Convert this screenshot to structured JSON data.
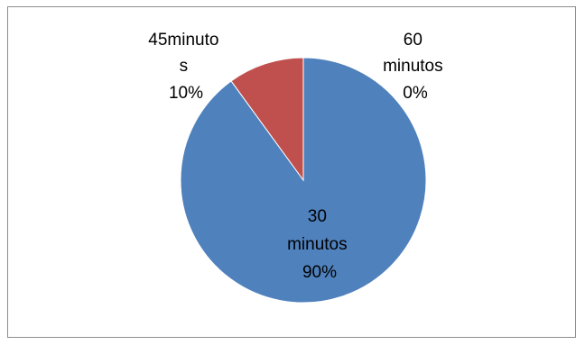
{
  "chart_data": {
    "type": "pie",
    "title": "",
    "slices": [
      {
        "label": "30 minutos",
        "value": 90,
        "percent_label": "90%",
        "color": "#4F81BD"
      },
      {
        "label": "45minutos",
        "value": 10,
        "percent_label": "10%",
        "color": "#C0504D"
      },
      {
        "label": "60 minutos",
        "value": 0,
        "percent_label": "0%",
        "color": "#9BBB59"
      }
    ],
    "data_labels": [
      {
        "lines": [
          "30",
          "minutos",
          "90%"
        ]
      },
      {
        "lines": [
          "45minuto",
          "s",
          "10%"
        ]
      },
      {
        "lines": [
          "60",
          "minutos",
          "0%"
        ]
      }
    ],
    "legend": "none"
  }
}
